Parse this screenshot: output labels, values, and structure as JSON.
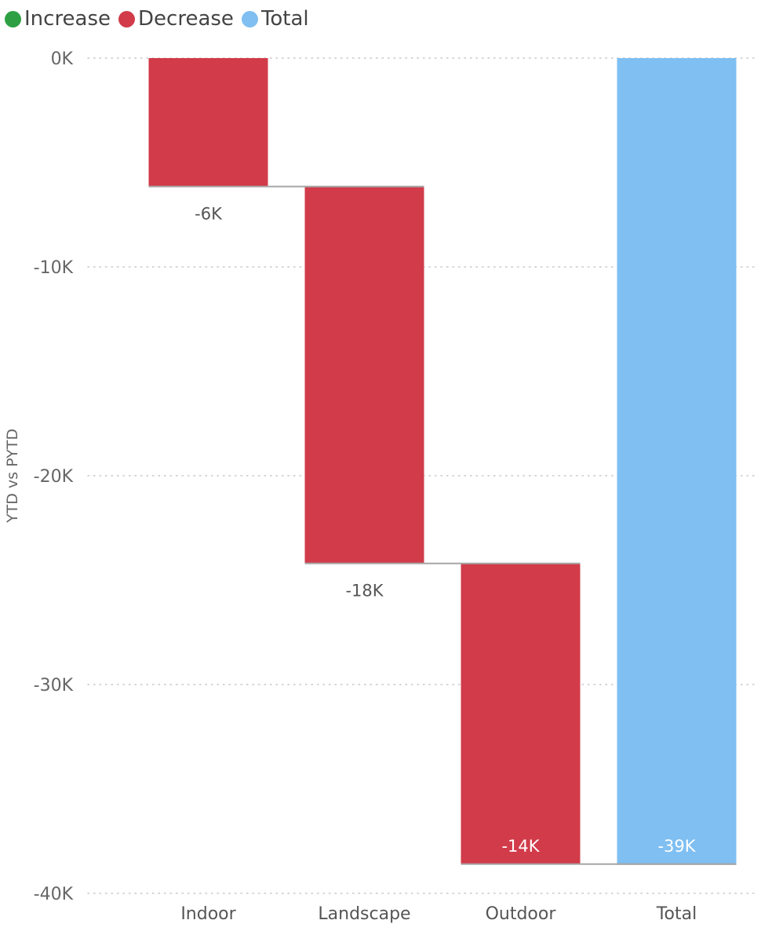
{
  "chart_data": {
    "type": "waterfall",
    "legend": [
      {
        "label": "Increase",
        "color": "#2ea043"
      },
      {
        "label": "Decrease",
        "color": "#d13b4a"
      },
      {
        "label": "Total",
        "color": "#7fbff2"
      }
    ],
    "ylabel": "YTD vs PYTD",
    "ylim": [
      -40000,
      0
    ],
    "yticks": [
      {
        "value": 0,
        "label": "0K"
      },
      {
        "value": -10000,
        "label": "-10K"
      },
      {
        "value": -20000,
        "label": "-20K"
      },
      {
        "value": -30000,
        "label": "-30K"
      },
      {
        "value": -40000,
        "label": "-40K"
      }
    ],
    "categories": [
      "Indoor",
      "Landscape",
      "Outdoor",
      "Total"
    ],
    "bars": [
      {
        "category": "Indoor",
        "kind": "decrease",
        "start": 0,
        "end": -6150,
        "label": "-6K"
      },
      {
        "category": "Landscape",
        "kind": "decrease",
        "start": -6150,
        "end": -24200,
        "label": "-18K"
      },
      {
        "category": "Outdoor",
        "kind": "decrease",
        "start": -24200,
        "end": -38600,
        "label": "-14K"
      },
      {
        "category": "Total",
        "kind": "total",
        "start": 0,
        "end": -38600,
        "label": "-39K"
      }
    ],
    "colors": {
      "increase": "#2ea043",
      "decrease": "#d13b4a",
      "total": "#7fbff2",
      "grid": "#c8c8c8",
      "connector": "#a6a6a6",
      "label_outside": "#555555",
      "label_inside": "#ffffff"
    },
    "grid": true,
    "legend_position": "top-left"
  }
}
